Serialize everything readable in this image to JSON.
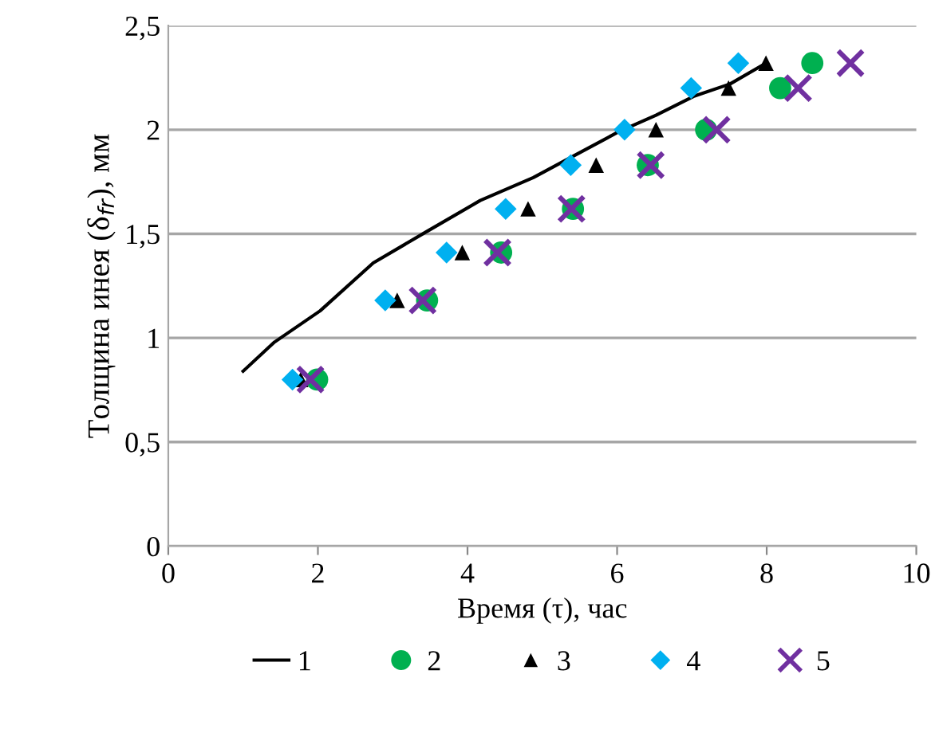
{
  "chart_data": {
    "type": "scatter",
    "xlabel": "Время (τ), час",
    "ylabel": "Толщина инея (δ$_{fr}$), мм",
    "xlim": [
      0,
      10
    ],
    "xticks": [
      0,
      2,
      4,
      6,
      8,
      10
    ],
    "ylim": [
      0,
      2.5
    ],
    "yticks": [
      0,
      {
        "value": 0.5,
        "label": "0,5"
      },
      1,
      {
        "value": 1.5,
        "label": "1,5"
      },
      2,
      {
        "value": 2.5,
        "label": "2,5"
      }
    ],
    "grid": "y",
    "legend": "bottom",
    "series": [
      {
        "name": "1",
        "type": "line",
        "color": "#000000",
        "marker": "none",
        "line_style": "solid",
        "x": [
          1.0,
          1.42,
          2.03,
          2.74,
          3.45,
          4.17,
          4.88,
          5.45,
          6.02,
          6.52,
          7.02,
          7.51,
          7.99
        ],
        "values": [
          0.84,
          0.98,
          1.13,
          1.36,
          1.51,
          1.66,
          1.77,
          1.88,
          1.99,
          2.07,
          2.16,
          2.22,
          2.32
        ]
      },
      {
        "name": "2",
        "color": "#00b050",
        "marker": "circle",
        "x": [
          1.99,
          3.46,
          4.45,
          5.41,
          6.41,
          7.19,
          8.18,
          8.61
        ],
        "values": [
          0.8,
          1.18,
          1.41,
          1.62,
          1.83,
          2.0,
          2.2,
          2.32
        ]
      },
      {
        "name": "3",
        "color": "#000000",
        "marker": "triangle",
        "x": [
          1.77,
          3.06,
          3.93,
          4.81,
          5.72,
          6.52,
          7.49,
          7.99
        ],
        "values": [
          0.8,
          1.18,
          1.41,
          1.62,
          1.83,
          2.0,
          2.2,
          2.32
        ]
      },
      {
        "name": "4",
        "color": "#00b0f0",
        "marker": "diamond",
        "x": [
          1.66,
          2.9,
          3.72,
          4.51,
          5.38,
          6.1,
          6.99,
          7.62
        ],
        "values": [
          0.8,
          1.18,
          1.41,
          1.62,
          1.83,
          2.0,
          2.2,
          2.32
        ]
      },
      {
        "name": "5",
        "color": "#7030a0",
        "marker": "cross",
        "x": [
          1.9,
          3.4,
          4.4,
          5.39,
          6.45,
          7.33,
          8.42,
          9.12
        ],
        "values": [
          0.8,
          1.18,
          1.41,
          1.62,
          1.83,
          2.0,
          2.2,
          2.32
        ]
      }
    ]
  }
}
